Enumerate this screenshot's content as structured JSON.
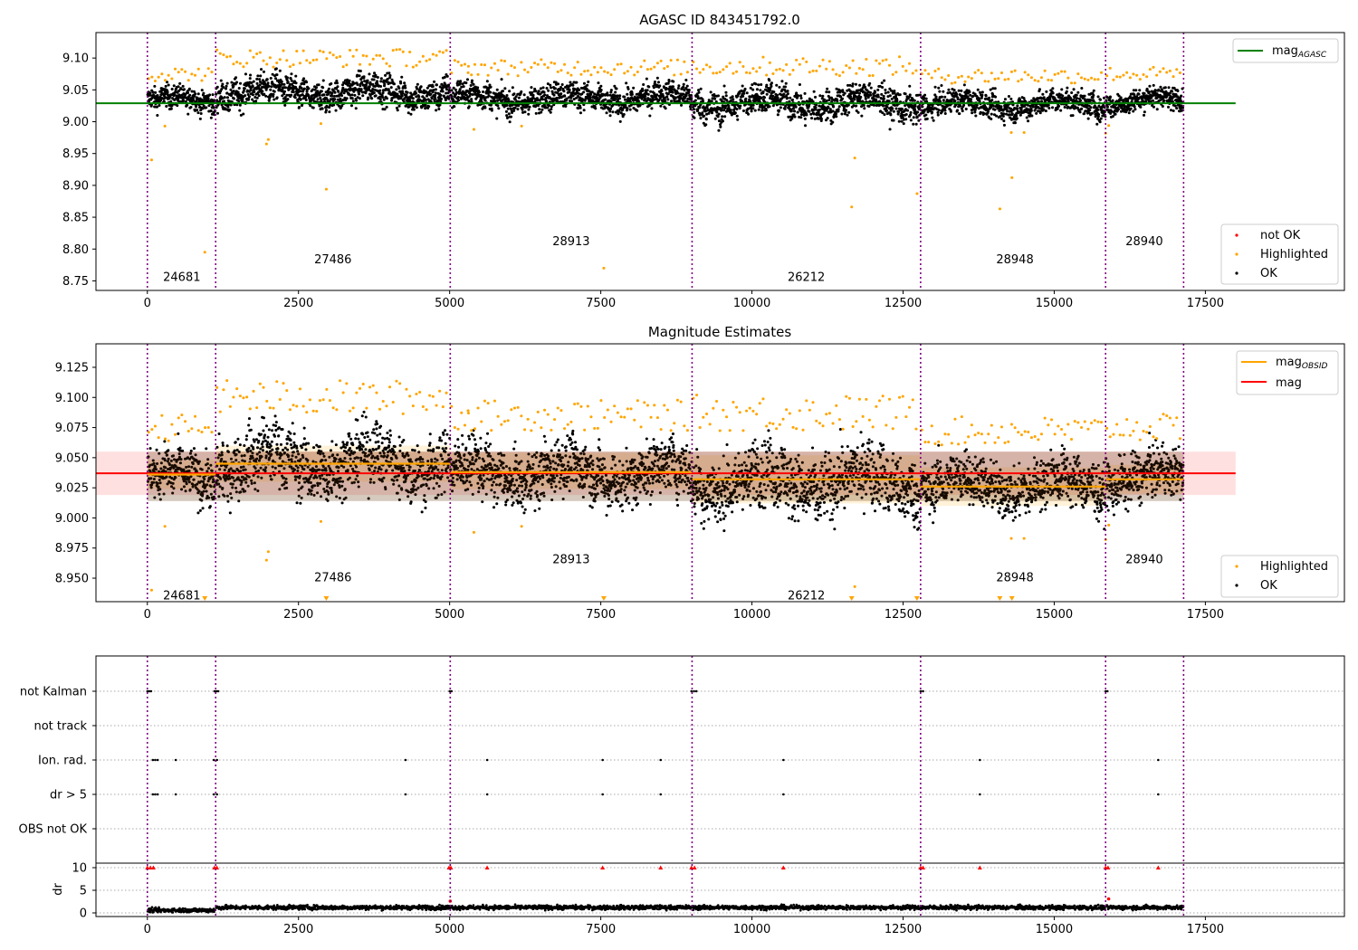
{
  "title": "AGASC ID 843451792.0",
  "chart_data": [
    {
      "type": "scatter",
      "title": "AGASC ID 843451792.0",
      "xlim": [
        -850,
        19800
      ],
      "ylim": [
        8.735,
        9.14
      ],
      "xticks": [
        0,
        2500,
        5000,
        7500,
        10000,
        12500,
        15000,
        17500
      ],
      "xtick_labels": [
        "0",
        "2500",
        "5000",
        "7500",
        "10000",
        "12500",
        "15000",
        "17500"
      ],
      "yticks": [
        8.75,
        8.8,
        8.85,
        8.9,
        8.95,
        9.0,
        9.05,
        9.1
      ],
      "ytick_labels": [
        "8.75",
        "8.80",
        "8.85",
        "8.90",
        "8.95",
        "9.00",
        "9.05",
        "9.10"
      ],
      "obs_boundaries": [
        0,
        1130,
        5010,
        9010,
        12790,
        15850,
        17140
      ],
      "obs_labels": [
        {
          "text": "24681",
          "x": 570,
          "y": 8.757
        },
        {
          "text": "27486",
          "x": 3070,
          "y": 8.785
        },
        {
          "text": "28913",
          "x": 7010,
          "y": 8.813
        },
        {
          "text": "26212",
          "x": 10900,
          "y": 8.757
        },
        {
          "text": "28948",
          "x": 14350,
          "y": 8.785
        },
        {
          "text": "28940",
          "x": 16490,
          "y": 8.813
        }
      ],
      "mag_agasc": {
        "value": 9.029,
        "x_range": [
          -850,
          18000
        ]
      },
      "segments": [
        {
          "x0": 0,
          "x1": 1130,
          "center": 9.033,
          "spread": 0.014
        },
        {
          "x0": 1130,
          "x1": 5010,
          "center": 9.046,
          "spread": 0.018
        },
        {
          "x0": 5010,
          "x1": 9010,
          "center": 9.037,
          "spread": 0.016
        },
        {
          "x0": 9010,
          "x1": 12790,
          "center": 9.03,
          "spread": 0.019
        },
        {
          "x0": 12790,
          "x1": 15850,
          "center": 9.027,
          "spread": 0.015
        },
        {
          "x0": 15850,
          "x1": 17140,
          "center": 9.033,
          "spread": 0.014
        }
      ],
      "highlighted_outliers": [
        [
          70,
          8.94
        ],
        [
          290,
          8.993
        ],
        [
          950,
          8.795
        ],
        [
          1970,
          8.965
        ],
        [
          2000,
          8.972
        ],
        [
          2960,
          8.894
        ],
        [
          2870,
          8.997
        ],
        [
          5400,
          8.988
        ],
        [
          5310,
          9.087
        ],
        [
          7550,
          8.77
        ],
        [
          11650,
          8.866
        ],
        [
          11700,
          8.943
        ],
        [
          12730,
          8.887
        ],
        [
          14100,
          8.863
        ],
        [
          14300,
          8.912
        ],
        [
          14290,
          8.983
        ],
        [
          14500,
          8.983
        ],
        [
          15850,
          8.982
        ],
        [
          15900,
          8.994
        ],
        [
          6190,
          8.993
        ]
      ],
      "legend_upper": [
        {
          "label": "mag",
          "subscript": "AGASC",
          "color": "#008000"
        }
      ],
      "legend_lower": [
        {
          "label": "not OK",
          "color": "#ff0000"
        },
        {
          "label": "Highlighted",
          "color": "#ffa500"
        },
        {
          "label": "OK",
          "color": "#000000"
        }
      ]
    },
    {
      "type": "scatter",
      "title": "Magnitude Estimates",
      "xlim": [
        -850,
        19800
      ],
      "ylim": [
        8.9305,
        9.1445
      ],
      "xticks": [
        0,
        2500,
        5000,
        7500,
        10000,
        12500,
        15000,
        17500
      ],
      "xtick_labels": [
        "0",
        "2500",
        "5000",
        "7500",
        "10000",
        "12500",
        "15000",
        "17500"
      ],
      "yticks": [
        8.95,
        8.975,
        9.0,
        9.025,
        9.05,
        9.075,
        9.1,
        9.125
      ],
      "ytick_labels": [
        "8.950",
        "8.975",
        "9.000",
        "9.025",
        "9.050",
        "9.075",
        "9.100",
        "9.125"
      ],
      "obs_labels": [
        {
          "text": "24681",
          "x": 570,
          "y": 8.936
        },
        {
          "text": "27486",
          "x": 3070,
          "y": 8.951
        },
        {
          "text": "28913",
          "x": 7010,
          "y": 8.966
        },
        {
          "text": "26212",
          "x": 10900,
          "y": 8.936
        },
        {
          "text": "28948",
          "x": 14350,
          "y": 8.951
        },
        {
          "text": "28940",
          "x": 16490,
          "y": 8.966
        }
      ],
      "mag": {
        "value": 9.037,
        "band": [
          9.019,
          9.055
        ],
        "x_range": [
          -850,
          18000
        ]
      },
      "mag_obsid": [
        {
          "x0": 0,
          "x1": 1130,
          "value": 9.036,
          "band": [
            9.024,
            9.048
          ]
        },
        {
          "x0": 1130,
          "x1": 5010,
          "value": 9.045,
          "band": [
            9.03,
            9.06
          ]
        },
        {
          "x0": 5010,
          "x1": 9010,
          "value": 9.038,
          "band": [
            9.024,
            9.054
          ]
        },
        {
          "x0": 9010,
          "x1": 12790,
          "value": 9.032,
          "band": [
            9.012,
            9.052
          ]
        },
        {
          "x0": 12790,
          "x1": 15850,
          "value": 9.026,
          "band": [
            9.01,
            9.042
          ]
        },
        {
          "x0": 15850,
          "x1": 17140,
          "value": 9.032,
          "band": [
            9.02,
            9.044
          ]
        }
      ],
      "below_range_markers": [
        950,
        2960,
        7550,
        11650,
        12730,
        14100,
        14300
      ],
      "legend_upper": [
        {
          "label": "mag",
          "subscript": "OBSID",
          "color": "#ffa500"
        },
        {
          "label": "mag",
          "subscript": "",
          "color": "#ff0000"
        }
      ],
      "legend_lower": [
        {
          "label": "Highlighted",
          "color": "#ffa500"
        },
        {
          "label": "OK",
          "color": "#000000"
        }
      ]
    },
    {
      "type": "scatter",
      "title": "",
      "xlim": [
        -850,
        19800
      ],
      "categories": [
        "not Kalman",
        "not track",
        "Ion. rad.",
        "dr > 5",
        "OBS not OK"
      ],
      "flags": {
        "not Kalman": [
          0,
          30,
          60,
          1110,
          1140,
          1170,
          5000,
          5030,
          9000,
          9040,
          9080,
          12790,
          12830,
          15850,
          15880
        ],
        "not track": [],
        "Ion. rad.": [
          90,
          130,
          170,
          470,
          1100,
          1150,
          4270,
          5620,
          7530,
          8490,
          10520,
          13770,
          16720
        ],
        "dr > 5": [
          90,
          130,
          170,
          470,
          1100,
          1150,
          4270,
          5620,
          7530,
          8490,
          10520,
          13770,
          16720
        ],
        "OBS not OK": []
      },
      "dr_ylim": [
        -0.8,
        11
      ],
      "dr_yticks": [
        0,
        5,
        10
      ],
      "dr_ylabel": "dr",
      "dr_typical": 1.2,
      "dr_clipped_markers": [
        0,
        50,
        100,
        1110,
        1150,
        4990,
        5020,
        5620,
        7530,
        8490,
        9000,
        9050,
        10520,
        12790,
        12830,
        13770,
        15850,
        15890,
        16720
      ],
      "dr_spikes": [
        [
          5010,
          2.6
        ],
        [
          15900,
          3.1
        ]
      ],
      "xticks": [
        0,
        2500,
        5000,
        7500,
        10000,
        12500,
        15000,
        17500
      ],
      "xtick_labels": [
        "0",
        "2500",
        "5000",
        "7500",
        "10000",
        "12500",
        "15000",
        "17500"
      ]
    }
  ]
}
